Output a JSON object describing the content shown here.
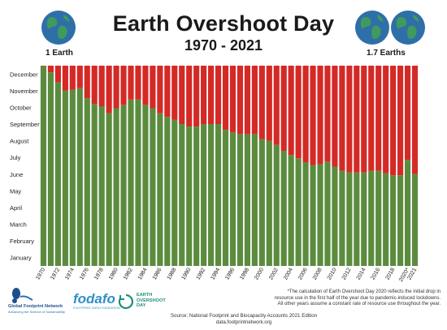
{
  "header": {
    "title": "Earth Overshoot Day",
    "subtitle": "1970 - 2021",
    "left_label": "1 Earth",
    "right_label": "1.7 Earths"
  },
  "footer": {
    "footnote_line1": "*The calculation of Earth Overshoot Day 2020 reflects the initial drop in",
    "footnote_line2": "resource use in the first half of the year due to pandemic-induced lockdowns.",
    "footnote_line3": "All other years assume a constant rate of resource use throughout the year.",
    "source_line1": "Source: National Footprint and Biocapacity Accounts 2021 Edition",
    "source_line2": "data.footprintnetwork.org",
    "logo_gfn_name": "Global Footprint Network",
    "logo_gfn_tag": "Advancing the Science of Sustainability",
    "logo_fodafo": "fodafo",
    "logo_fodafo_tag": "FOOTPRINT DATA FOUNDATION",
    "logo_eod_line1": "EARTH",
    "logo_eod_line2": "OVERSHOOT",
    "logo_eod_line3": "DAY"
  },
  "icons": {
    "left_globe": "globe-icon",
    "right_globes": "globe-icon"
  },
  "colors": {
    "green": "#5b8c3e",
    "red": "#d42a27",
    "ocean": "#2f6fa8",
    "land": "#3f9b5d"
  },
  "chart_data": {
    "type": "bar",
    "stacked": true,
    "x_tick_labels": [
      "1970",
      "1972",
      "1974",
      "1976",
      "1978",
      "1980",
      "1982",
      "1984",
      "1986",
      "1988",
      "1990",
      "1992",
      "1994",
      "1996",
      "1998",
      "2000",
      "2002",
      "2004",
      "2006",
      "2008",
      "2010",
      "2012",
      "2014",
      "2016",
      "2018",
      "2020*",
      "2021"
    ],
    "y_tick_labels": [
      "January",
      "February",
      "March",
      "April",
      "May",
      "June",
      "July",
      "August",
      "September",
      "October",
      "November",
      "December"
    ],
    "y_unit": "month (0 = start of January, 12 = end of December)",
    "ylim": [
      0,
      12
    ],
    "categories": [
      "1970",
      "1971",
      "1972",
      "1973",
      "1974",
      "1975",
      "1976",
      "1977",
      "1978",
      "1979",
      "1980",
      "1981",
      "1982",
      "1983",
      "1984",
      "1985",
      "1986",
      "1987",
      "1988",
      "1989",
      "1990",
      "1991",
      "1992",
      "1993",
      "1994",
      "1995",
      "1996",
      "1997",
      "1998",
      "1999",
      "2000",
      "2001",
      "2002",
      "2003",
      "2004",
      "2005",
      "2006",
      "2007",
      "2008",
      "2009",
      "2010",
      "2011",
      "2012",
      "2013",
      "2014",
      "2015",
      "2016",
      "2017",
      "2018",
      "2019",
      "2020",
      "2021"
    ],
    "series": [
      {
        "values": [
          11.98,
          11.6,
          11.0,
          10.5,
          10.55,
          10.65,
          10.05,
          9.7,
          9.55,
          9.15,
          9.45,
          9.65,
          9.97,
          9.97,
          9.65,
          9.45,
          9.15,
          8.93,
          8.75,
          8.5,
          8.35,
          8.35,
          8.5,
          8.5,
          8.5,
          8.15,
          8.0,
          7.9,
          7.9,
          7.9,
          7.6,
          7.5,
          7.25,
          6.9,
          6.65,
          6.45,
          6.2,
          6.05,
          6.1,
          6.25,
          5.95,
          5.7,
          5.6,
          5.6,
          5.6,
          5.7,
          5.7,
          5.55,
          5.43,
          5.43,
          6.35,
          5.5
        ]
      },
      {
        "values": [
          0.02,
          0.4,
          1.0,
          1.5,
          1.45,
          1.35,
          1.95,
          2.3,
          2.45,
          2.85,
          2.55,
          2.35,
          2.03,
          2.03,
          2.35,
          2.55,
          2.85,
          3.07,
          3.25,
          3.5,
          3.65,
          3.65,
          3.5,
          3.5,
          3.5,
          3.85,
          4.0,
          4.1,
          4.1,
          4.1,
          4.4,
          4.5,
          4.75,
          5.1,
          5.35,
          5.55,
          5.8,
          5.95,
          5.9,
          5.75,
          6.05,
          6.3,
          6.4,
          6.4,
          6.4,
          6.3,
          6.3,
          6.45,
          6.57,
          6.57,
          5.65,
          6.5
        ]
      }
    ]
  }
}
